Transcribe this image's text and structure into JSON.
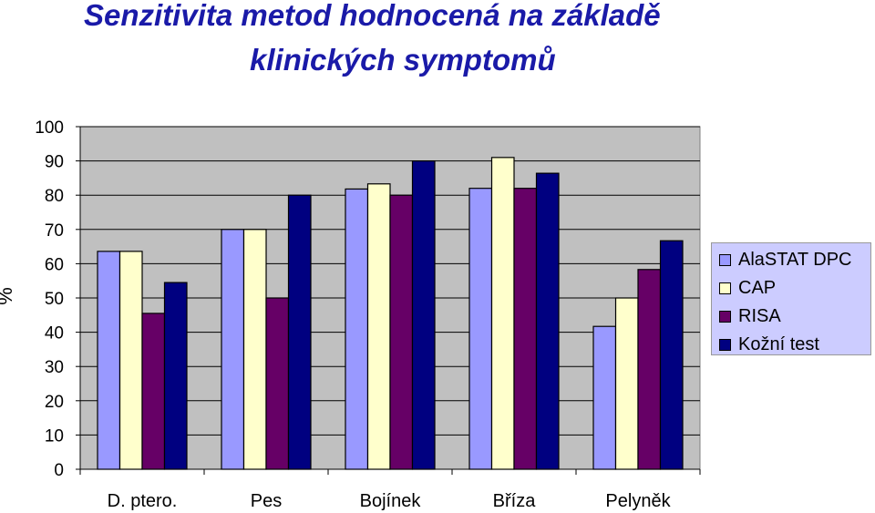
{
  "title_line1": "Senzitivita metod hodnocená na základě",
  "title_line2": "klinických symptomů",
  "chart_data": {
    "type": "bar",
    "categories": [
      "D. ptero.",
      "Pes",
      "Bojínek",
      "Bříza",
      "Pelyněk"
    ],
    "series": [
      {
        "name": "AlaSTAT DPC",
        "values": [
          63.6,
          70,
          81.8,
          82,
          41.7
        ],
        "color": "#9999ff"
      },
      {
        "name": "CAP",
        "values": [
          63.6,
          70,
          83.3,
          91,
          50
        ],
        "color": "#ffffcc"
      },
      {
        "name": "RISA",
        "values": [
          45.5,
          50,
          80,
          82,
          58.3
        ],
        "color": "#660066"
      },
      {
        "name": "Kožní test",
        "values": [
          54.5,
          80,
          90,
          86.4,
          66.7
        ],
        "color": "#000080"
      }
    ],
    "y_ticks": [
      "0",
      "10",
      "20",
      "30",
      "40",
      "50",
      "60",
      "70",
      "80",
      "90",
      "100"
    ],
    "ylabel": "%",
    "ylim": [
      0,
      100
    ],
    "grid": true,
    "plot_background": "#c0c0c0",
    "legend": "right"
  }
}
